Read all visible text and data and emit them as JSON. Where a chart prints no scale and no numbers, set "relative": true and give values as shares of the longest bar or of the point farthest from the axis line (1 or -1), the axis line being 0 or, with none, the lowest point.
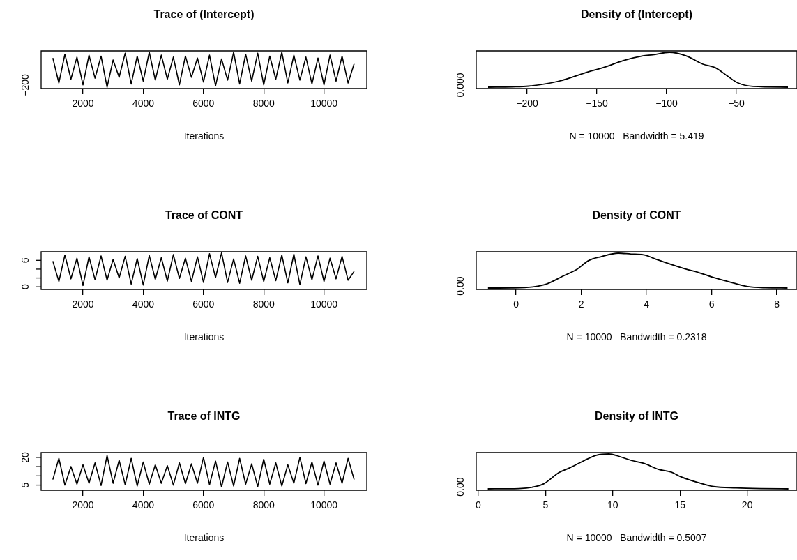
{
  "chart_data": [
    {
      "type": "line",
      "title": "Trace of (Intercept)",
      "xlabel": "Iterations",
      "color": "#000000",
      "relative": true,
      "annotations": [
        "−200"
      ],
      "x": [
        1000,
        1200,
        1400,
        1600,
        1800,
        2000,
        2200,
        2400,
        2600,
        2800,
        3000,
        3200,
        3400,
        3600,
        3800,
        4000,
        4200,
        4400,
        4600,
        4800,
        5000,
        5200,
        5400,
        5600,
        5800,
        6000,
        6200,
        6400,
        6600,
        6800,
        7000,
        7200,
        7400,
        7600,
        7800,
        8000,
        8200,
        8400,
        8600,
        8800,
        9000,
        9200,
        9400,
        9600,
        9800,
        10000,
        10200,
        10400,
        10600,
        10800,
        11000
      ],
      "values": [
        0.835,
        0.121,
        0.945,
        0.231,
        0.863,
        0.066,
        0.918,
        0.258,
        0.89,
        0,
        0.78,
        0.286,
        0.973,
        0.093,
        0.89,
        0.176,
        1,
        0.203,
        0.918,
        0.231,
        0.863,
        0.066,
        0.89,
        0.286,
        0.835,
        0.148,
        0.918,
        0.038,
        0.808,
        0.203,
        1,
        0.093,
        0.945,
        0.176,
        0.973,
        0.066,
        0.89,
        0.231,
        1,
        0.121,
        0.918,
        0.203,
        0.863,
        0.093,
        0.835,
        0.066,
        0.918,
        0.176,
        0.89,
        0.121,
        0.67
      ],
      "xlim": [
        611,
        11420
      ],
      "xticks": [
        2000,
        4000,
        6000,
        8000,
        10000
      ]
    },
    {
      "type": "line",
      "title": "Density of (Intercept)",
      "xlabel": "N = 10000   Bandwidth = 5.419",
      "color": "#000000",
      "relative": true,
      "annotations": [
        "0.000"
      ],
      "x": [
        -228,
        -211,
        -199,
        -177,
        -156,
        -145,
        -131,
        -117,
        -110,
        -98,
        -86,
        -74,
        -65,
        -56,
        -49,
        -38,
        -13
      ],
      "values": [
        0,
        0.01,
        0.03,
        0.175,
        0.443,
        0.567,
        0.763,
        0.897,
        0.928,
        1,
        0.897,
        0.66,
        0.557,
        0.309,
        0.124,
        0.021,
        0
      ],
      "xlim": [
        -236.5,
        -6.5
      ],
      "xticks": [
        {
          "value": -200,
          "label": "−200"
        },
        {
          "value": -150,
          "label": "−150"
        },
        {
          "value": -100,
          "label": "−100"
        },
        {
          "value": -50,
          "label": "−50"
        }
      ]
    },
    {
      "type": "line",
      "title": "Trace of CONT",
      "xlabel": "Iterations",
      "color": "#000000",
      "x": [
        1000,
        1200,
        1400,
        1600,
        1800,
        2000,
        2200,
        2400,
        2600,
        2800,
        3000,
        3200,
        3400,
        3600,
        3800,
        4000,
        4200,
        4400,
        4600,
        4800,
        5000,
        5200,
        5400,
        5600,
        5800,
        6000,
        6200,
        6400,
        6600,
        6800,
        7000,
        7200,
        7400,
        7600,
        7800,
        8000,
        8200,
        8400,
        8600,
        8800,
        9000,
        9200,
        9400,
        9600,
        9800,
        10000,
        10200,
        10400,
        10600,
        10800,
        11000
      ],
      "values": [
        5.8,
        1.2,
        7.2,
        1.8,
        6.5,
        0.3,
        6.8,
        1.6,
        7.0,
        1.5,
        6.2,
        2.0,
        6.9,
        0.6,
        6.4,
        0.4,
        7.1,
        1.7,
        6.6,
        1.3,
        7.3,
        1.9,
        6.5,
        1.2,
        6.8,
        1.0,
        7.5,
        2.1,
        7.7,
        1.0,
        6.3,
        0.8,
        7.0,
        1.5,
        6.9,
        1.2,
        6.6,
        1.4,
        7.2,
        0.9,
        7.4,
        0.5,
        6.8,
        1.6,
        7.0,
        1.2,
        6.5,
        1.8,
        6.9,
        1.5,
        3.5
      ],
      "xlim": [
        611,
        11420
      ],
      "xticks": [
        2000,
        4000,
        6000,
        8000,
        10000
      ],
      "ylim": [
        -0.6,
        7.95
      ],
      "yticks": [
        0,
        {
          "value": 2,
          "label": null
        },
        {
          "value": 4,
          "label": null
        },
        6
      ]
    },
    {
      "type": "line",
      "title": "Density of CONT",
      "xlabel": "N = 10000   Bandwidth = 0.2318",
      "color": "#000000",
      "relative": true,
      "annotations": [
        "0.00"
      ],
      "x": [
        -0.86,
        -0.14,
        0.55,
        0.93,
        1.47,
        1.85,
        2.23,
        2.61,
        3.14,
        3.53,
        3.91,
        4.37,
        5.21,
        5.59,
        6.04,
        6.5,
        7.11,
        7.65,
        8.33
      ],
      "values": [
        0,
        0.004,
        0.037,
        0.112,
        0.356,
        0.524,
        0.787,
        0.899,
        1,
        0.974,
        0.951,
        0.801,
        0.543,
        0.449,
        0.307,
        0.187,
        0.041,
        0.007,
        0
      ],
      "xlim": [
        -1.22,
        8.62
      ],
      "xticks": [
        0,
        2,
        4,
        6,
        8
      ]
    },
    {
      "type": "line",
      "title": "Trace of INTG",
      "xlabel": "Iterations",
      "color": "#000000",
      "x": [
        1000,
        1200,
        1400,
        1600,
        1800,
        2000,
        2200,
        2400,
        2600,
        2800,
        3000,
        3200,
        3400,
        3600,
        3800,
        4000,
        4200,
        4400,
        4600,
        4800,
        5000,
        5200,
        5400,
        5600,
        5800,
        6000,
        6200,
        6400,
        6600,
        6800,
        7000,
        7200,
        7400,
        7600,
        7800,
        8000,
        8200,
        8400,
        8600,
        8800,
        9000,
        9200,
        9400,
        9600,
        9800,
        10000,
        10200,
        10400,
        10600,
        10800,
        11000
      ],
      "values": [
        8,
        19.5,
        5,
        15,
        5.5,
        16,
        6,
        17,
        4.8,
        21,
        6,
        18.5,
        5.2,
        19.5,
        4.5,
        17.5,
        5.5,
        16,
        6,
        15.5,
        5,
        17,
        5.8,
        16.5,
        6,
        20,
        5.2,
        18,
        4,
        17.5,
        4.5,
        19.5,
        5.5,
        16.5,
        4.2,
        19,
        5.5,
        17,
        4.5,
        16,
        6,
        20,
        5.8,
        17.5,
        5,
        18,
        5.5,
        17,
        6,
        19.5,
        8
      ],
      "xlim": [
        611,
        11420
      ],
      "xticks": [
        2000,
        4000,
        6000,
        8000,
        10000
      ],
      "ylim": [
        2.2,
        22.6
      ],
      "yticks": [
        5,
        {
          "value": 10,
          "label": null
        },
        {
          "value": 15,
          "label": null
        },
        20
      ]
    },
    {
      "type": "line",
      "title": "Density of INTG",
      "xlabel": "N = 10000   Bandwidth = 0.5007",
      "color": "#000000",
      "relative": true,
      "annotations": [
        "0.00"
      ],
      "x": [
        0.71,
        3.03,
        4.14,
        4.88,
        5.99,
        6.74,
        7.85,
        8.78,
        9.71,
        10.44,
        11.38,
        12.31,
        13.42,
        14.34,
        15.09,
        16.38,
        17.5,
        19.17,
        21.02,
        23.06
      ],
      "values": [
        0,
        0.009,
        0.056,
        0.148,
        0.463,
        0.593,
        0.806,
        0.963,
        1,
        0.935,
        0.815,
        0.731,
        0.556,
        0.481,
        0.343,
        0.176,
        0.065,
        0.028,
        0.009,
        0
      ],
      "xlim": [
        -0.15,
        23.7
      ],
      "xticks": [
        0,
        5,
        10,
        15,
        20
      ]
    }
  ]
}
